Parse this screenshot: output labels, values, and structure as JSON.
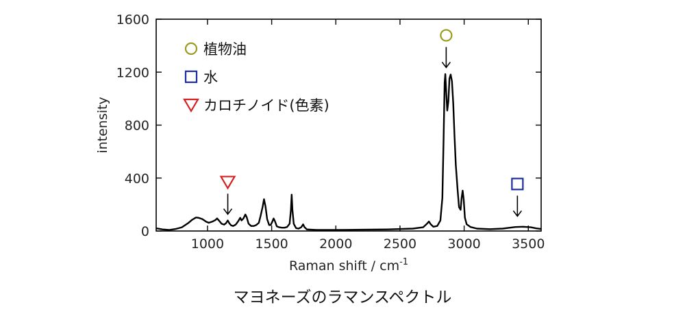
{
  "chart_data": {
    "type": "line",
    "title": "",
    "caption": "マヨネーズのラマンスペクトル",
    "xlabel": "Raman shift / cm",
    "xlabel_sup": "-1",
    "ylabel": "intensity",
    "xlim": [
      600,
      3600
    ],
    "ylim": [
      0,
      1600
    ],
    "xticks": [
      1000,
      1500,
      2000,
      2500,
      3000,
      3500
    ],
    "yticks": [
      0,
      400,
      800,
      1200,
      1600
    ],
    "grid": false,
    "legend_position": "top-left",
    "legend": [
      {
        "label": "植物油",
        "marker": "circle",
        "color": "#9a9a1e"
      },
      {
        "label": "水",
        "marker": "square",
        "color": "#1a2aa0"
      },
      {
        "label": "カロチノイド(色素)",
        "marker": "triangle-down",
        "color": "#d42020"
      }
    ],
    "annotations": [
      {
        "marker": "triangle-down",
        "x": 1158,
        "y": 370,
        "color": "#d42020"
      },
      {
        "marker": "circle",
        "x": 2860,
        "y": 1478,
        "color": "#9a9a1e"
      },
      {
        "marker": "square",
        "x": 3415,
        "y": 355,
        "color": "#1a2aa0"
      }
    ],
    "series": [
      {
        "color": "#000000",
        "points": [
          [
            600,
            20
          ],
          [
            650,
            12
          ],
          [
            700,
            8
          ],
          [
            750,
            15
          ],
          [
            800,
            28
          ],
          [
            850,
            60
          ],
          [
            880,
            85
          ],
          [
            910,
            102
          ],
          [
            930,
            100
          ],
          [
            960,
            90
          ],
          [
            990,
            70
          ],
          [
            1010,
            62
          ],
          [
            1040,
            72
          ],
          [
            1060,
            82
          ],
          [
            1075,
            95
          ],
          [
            1090,
            78
          ],
          [
            1110,
            55
          ],
          [
            1130,
            48
          ],
          [
            1145,
            60
          ],
          [
            1158,
            80
          ],
          [
            1170,
            58
          ],
          [
            1185,
            42
          ],
          [
            1200,
            38
          ],
          [
            1220,
            48
          ],
          [
            1240,
            75
          ],
          [
            1255,
            100
          ],
          [
            1265,
            80
          ],
          [
            1280,
            95
          ],
          [
            1295,
            125
          ],
          [
            1305,
            105
          ],
          [
            1320,
            55
          ],
          [
            1340,
            38
          ],
          [
            1360,
            38
          ],
          [
            1380,
            45
          ],
          [
            1400,
            62
          ],
          [
            1415,
            120
          ],
          [
            1430,
            185
          ],
          [
            1440,
            240
          ],
          [
            1452,
            185
          ],
          [
            1465,
            90
          ],
          [
            1480,
            45
          ],
          [
            1492,
            45
          ],
          [
            1505,
            70
          ],
          [
            1515,
            95
          ],
          [
            1525,
            75
          ],
          [
            1540,
            35
          ],
          [
            1560,
            28
          ],
          [
            1580,
            25
          ],
          [
            1600,
            25
          ],
          [
            1620,
            30
          ],
          [
            1640,
            55
          ],
          [
            1650,
            160
          ],
          [
            1656,
            275
          ],
          [
            1662,
            160
          ],
          [
            1672,
            55
          ],
          [
            1690,
            22
          ],
          [
            1710,
            18
          ],
          [
            1730,
            28
          ],
          [
            1745,
            50
          ],
          [
            1755,
            30
          ],
          [
            1775,
            12
          ],
          [
            1850,
            8
          ],
          [
            2000,
            8
          ],
          [
            2200,
            10
          ],
          [
            2400,
            12
          ],
          [
            2600,
            18
          ],
          [
            2680,
            28
          ],
          [
            2710,
            55
          ],
          [
            2725,
            72
          ],
          [
            2740,
            50
          ],
          [
            2760,
            32
          ],
          [
            2790,
            38
          ],
          [
            2815,
            80
          ],
          [
            2830,
            250
          ],
          [
            2840,
            700
          ],
          [
            2848,
            1120
          ],
          [
            2853,
            1185
          ],
          [
            2860,
            1050
          ],
          [
            2868,
            910
          ],
          [
            2877,
            980
          ],
          [
            2885,
            1150
          ],
          [
            2895,
            1182
          ],
          [
            2905,
            1130
          ],
          [
            2915,
            960
          ],
          [
            2925,
            720
          ],
          [
            2935,
            500
          ],
          [
            2948,
            320
          ],
          [
            2960,
            180
          ],
          [
            2972,
            160
          ],
          [
            2980,
            250
          ],
          [
            2988,
            305
          ],
          [
            2996,
            240
          ],
          [
            3006,
            100
          ],
          [
            3020,
            50
          ],
          [
            3050,
            30
          ],
          [
            3100,
            18
          ],
          [
            3200,
            14
          ],
          [
            3300,
            18
          ],
          [
            3400,
            30
          ],
          [
            3460,
            32
          ],
          [
            3520,
            28
          ],
          [
            3560,
            20
          ],
          [
            3600,
            15
          ]
        ]
      }
    ]
  }
}
